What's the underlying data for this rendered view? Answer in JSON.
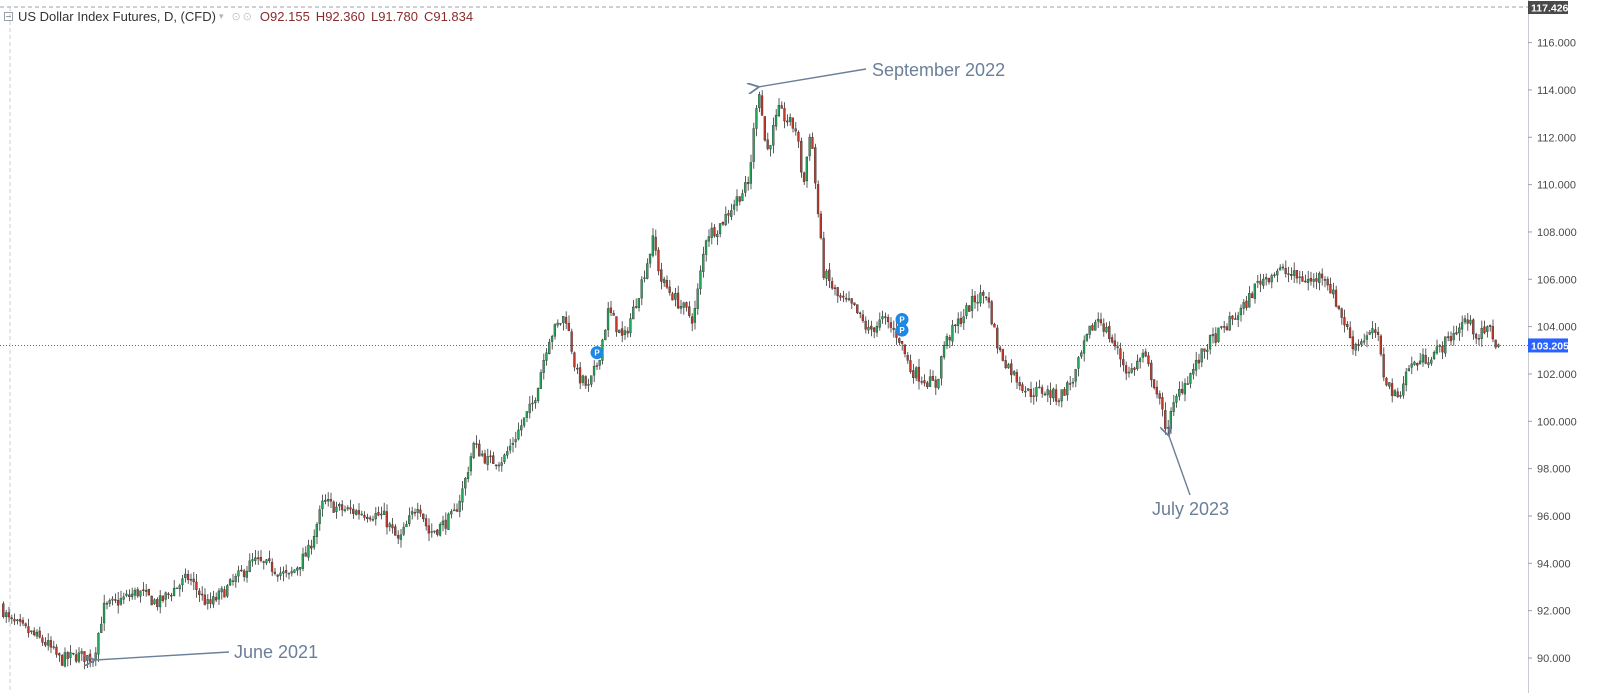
{
  "header": {
    "symbol": "US Dollar Index Futures, D, (CFD)",
    "caret": "▾",
    "icons": "⊙⊙",
    "open_key": "O",
    "open": "92.155",
    "high_key": "H",
    "high": "92.360",
    "low_key": "L",
    "low": "91.780",
    "close_key": "C",
    "close": "91.834"
  },
  "colors": {
    "up": "#26a65b",
    "down": "#c0392b",
    "wick": "#333333",
    "annotation": "#6b7f99",
    "current_line": "#3b6bd6",
    "current_tag": "#2962ff",
    "top_tag": "#4a4a4a",
    "marker": "#1e88e5"
  },
  "chart_data": {
    "type": "candlestick",
    "title": "US Dollar Index Futures, D, (CFD)",
    "ylim": [
      89.5,
      117.4
    ],
    "y_ticks": [
      "116.000",
      "114.000",
      "112.000",
      "110.000",
      "108.000",
      "106.000",
      "104.000",
      "102.000",
      "100.000",
      "98.000",
      "96.000",
      "94.000",
      "92.000",
      "90.000"
    ],
    "y_tick_values": [
      116,
      114,
      112,
      110,
      108,
      106,
      104,
      102,
      100,
      98,
      96,
      94,
      92,
      90
    ],
    "top_label": "117.426",
    "top_value": 117.426,
    "current_price_label": "103.205",
    "current_price": 103.205,
    "grid": false,
    "path": [
      [
        0,
        92.4
      ],
      [
        10,
        91.6
      ],
      [
        30,
        91.1
      ],
      [
        48,
        90.6
      ],
      [
        62,
        89.9
      ],
      [
        78,
        90.1
      ],
      [
        95,
        90.0
      ],
      [
        105,
        92.1
      ],
      [
        120,
        92.4
      ],
      [
        140,
        92.8
      ],
      [
        160,
        92.3
      ],
      [
        175,
        92.9
      ],
      [
        190,
        93.4
      ],
      [
        210,
        92.2
      ],
      [
        230,
        93.0
      ],
      [
        255,
        94.1
      ],
      [
        275,
        93.8
      ],
      [
        290,
        93.4
      ],
      [
        310,
        94.5
      ],
      [
        325,
        96.6
      ],
      [
        340,
        96.3
      ],
      [
        370,
        96.1
      ],
      [
        385,
        96.0
      ],
      [
        400,
        94.9
      ],
      [
        420,
        96.6
      ],
      [
        430,
        95.3
      ],
      [
        440,
        95.5
      ],
      [
        455,
        96.0
      ],
      [
        465,
        97.2
      ],
      [
        475,
        99.0
      ],
      [
        490,
        98.3
      ],
      [
        505,
        98.4
      ],
      [
        520,
        99.6
      ],
      [
        535,
        100.8
      ],
      [
        550,
        103.5
      ],
      [
        567,
        104.5
      ],
      [
        578,
        102.0
      ],
      [
        590,
        101.4
      ],
      [
        600,
        102.6
      ],
      [
        610,
        104.7
      ],
      [
        625,
        103.4
      ],
      [
        640,
        105.4
      ],
      [
        655,
        107.7
      ],
      [
        662,
        106.0
      ],
      [
        680,
        105.0
      ],
      [
        695,
        104.3
      ],
      [
        708,
        107.9
      ],
      [
        720,
        108.2
      ],
      [
        740,
        109.5
      ],
      [
        750,
        110.0
      ],
      [
        760,
        114.3
      ],
      [
        768,
        111.3
      ],
      [
        780,
        113.1
      ],
      [
        798,
        112.3
      ],
      [
        805,
        109.9
      ],
      [
        812,
        112.5
      ],
      [
        818,
        109.5
      ],
      [
        825,
        106.3
      ],
      [
        840,
        105.2
      ],
      [
        855,
        104.8
      ],
      [
        870,
        103.8
      ],
      [
        885,
        104.3
      ],
      [
        900,
        103.6
      ],
      [
        912,
        102.2
      ],
      [
        925,
        101.8
      ],
      [
        938,
        101.5
      ],
      [
        945,
        103.2
      ],
      [
        960,
        104.2
      ],
      [
        975,
        105.1
      ],
      [
        988,
        105.4
      ],
      [
        1000,
        103.0
      ],
      [
        1015,
        102.0
      ],
      [
        1030,
        101.2
      ],
      [
        1045,
        101.3
      ],
      [
        1060,
        101.0
      ],
      [
        1075,
        101.8
      ],
      [
        1090,
        103.7
      ],
      [
        1100,
        104.4
      ],
      [
        1115,
        103.3
      ],
      [
        1130,
        102.0
      ],
      [
        1145,
        102.8
      ],
      [
        1155,
        101.7
      ],
      [
        1168,
        99.7
      ],
      [
        1180,
        101.2
      ],
      [
        1195,
        102.2
      ],
      [
        1210,
        103.3
      ],
      [
        1225,
        103.9
      ],
      [
        1245,
        104.8
      ],
      [
        1260,
        105.9
      ],
      [
        1280,
        106.4
      ],
      [
        1297,
        106.1
      ],
      [
        1315,
        105.9
      ],
      [
        1325,
        106.3
      ],
      [
        1340,
        104.8
      ],
      [
        1355,
        103.2
      ],
      [
        1365,
        103.5
      ],
      [
        1378,
        103.8
      ],
      [
        1385,
        102.0
      ],
      [
        1398,
        100.9
      ],
      [
        1410,
        102.3
      ],
      [
        1425,
        102.6
      ],
      [
        1440,
        103.0
      ],
      [
        1455,
        103.7
      ],
      [
        1467,
        104.3
      ],
      [
        1480,
        103.6
      ],
      [
        1492,
        103.9
      ],
      [
        1498,
        103.2
      ]
    ],
    "annotations": [
      {
        "text": "September 2022",
        "price": 114.3
      },
      {
        "text": "June 2021",
        "price": 89.9
      },
      {
        "text": "July 2023",
        "price": 99.5
      }
    ],
    "markers": [
      {
        "label": "P",
        "price": 102.9
      },
      {
        "label": "P",
        "price": 104.3
      },
      {
        "label": "P",
        "price": 103.85
      }
    ]
  }
}
